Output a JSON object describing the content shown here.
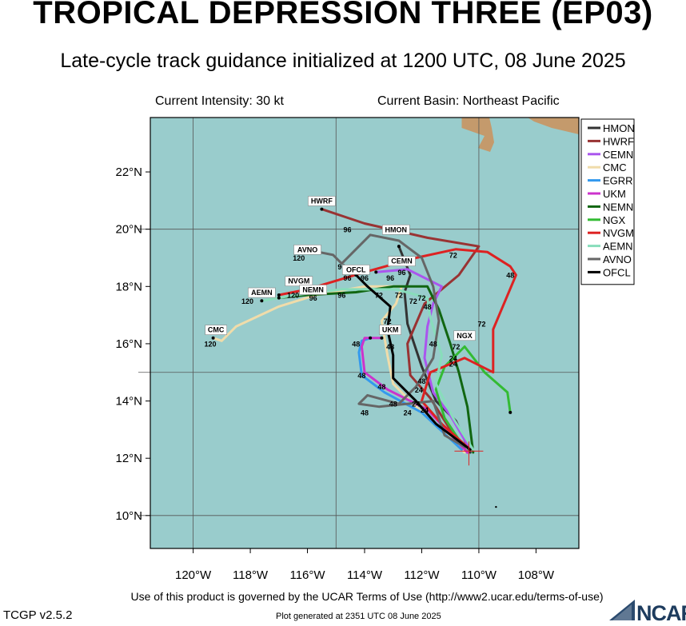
{
  "header": {
    "title": "TROPICAL DEPRESSION THREE (EP03)",
    "subtitle": "Late-cycle track guidance initialized at 1200 UTC, 08 June 2025",
    "intensity": "Current Intensity: 30 kt",
    "basin": "Current Basin: Northeast Pacific"
  },
  "map": {
    "ocean_color": "#99cccc",
    "land_color": "#c49a6c",
    "lon_labels": [
      "120°W",
      "118°W",
      "116°W",
      "114°W",
      "112°W",
      "110°W",
      "108°W"
    ],
    "lat_labels": [
      "22°N",
      "20°N",
      "18°N",
      "16°N",
      "14°N",
      "12°N",
      "10°N"
    ]
  },
  "legend": [
    {
      "name": "HMON",
      "color": "#333333"
    },
    {
      "name": "HWRF",
      "color": "#993333"
    },
    {
      "name": "CEMN",
      "color": "#aa55ee"
    },
    {
      "name": "CMC",
      "color": "#f0dcaa"
    },
    {
      "name": "EGRR",
      "color": "#3399ee"
    },
    {
      "name": "UKM",
      "color": "#cc33cc"
    },
    {
      "name": "NEMN",
      "color": "#116611"
    },
    {
      "name": "NGX",
      "color": "#33bb33"
    },
    {
      "name": "NVGM",
      "color": "#dd2222"
    },
    {
      "name": "AEMN",
      "color": "#88ddbb"
    },
    {
      "name": "AVNO",
      "color": "#666666"
    },
    {
      "name": "OFCL",
      "color": "#000000"
    }
  ],
  "track_labels": [
    {
      "text": "HWRF",
      "lon": -115.5,
      "lat": 20.9
    },
    {
      "text": "AVNO",
      "lon": -116,
      "lat": 19.2
    },
    {
      "text": "HMON",
      "lon": -112.9,
      "lat": 19.9
    },
    {
      "text": "CEMN",
      "lon": -112.7,
      "lat": 18.8
    },
    {
      "text": "OFCL",
      "lon": -114.3,
      "lat": 18.5
    },
    {
      "text": "NVGM",
      "lon": -116.3,
      "lat": 18.1
    },
    {
      "text": "NEMN",
      "lon": -115.8,
      "lat": 17.8
    },
    {
      "text": "AEMN",
      "lon": -117.6,
      "lat": 17.7
    },
    {
      "text": "CMC",
      "lon": -119.2,
      "lat": 16.4
    },
    {
      "text": "UKM",
      "lon": -113.1,
      "lat": 16.4
    },
    {
      "text": "NGX",
      "lon": -110.5,
      "lat": 16.2
    }
  ],
  "hour_labels": [
    {
      "text": "96",
      "lon": -114.6,
      "lat": 19.9
    },
    {
      "text": "120",
      "lon": -116.3,
      "lat": 18.9
    },
    {
      "text": "96",
      "lon": -114.8,
      "lat": 18.6
    },
    {
      "text": "96",
      "lon": -114.6,
      "lat": 18.2
    },
    {
      "text": "96",
      "lon": -114,
      "lat": 18.2
    },
    {
      "text": "96",
      "lon": -113.1,
      "lat": 18.2
    },
    {
      "text": "96",
      "lon": -112.7,
      "lat": 18.4
    },
    {
      "text": "72",
      "lon": -110.9,
      "lat": 19.0
    },
    {
      "text": "48",
      "lon": -108.9,
      "lat": 18.3
    },
    {
      "text": "120",
      "lon": -116.5,
      "lat": 17.6
    },
    {
      "text": "96",
      "lon": -115.8,
      "lat": 17.5
    },
    {
      "text": "96",
      "lon": -114.8,
      "lat": 17.6
    },
    {
      "text": "120",
      "lon": -118.1,
      "lat": 17.4
    },
    {
      "text": "72",
      "lon": -113.5,
      "lat": 17.6
    },
    {
      "text": "72",
      "lon": -112.8,
      "lat": 17.6
    },
    {
      "text": "72",
      "lon": -112.3,
      "lat": 17.4
    },
    {
      "text": "72",
      "lon": -112,
      "lat": 17.5
    },
    {
      "text": "48",
      "lon": -111.8,
      "lat": 17.2
    },
    {
      "text": "72",
      "lon": -113.2,
      "lat": 16.7
    },
    {
      "text": "72",
      "lon": -109.9,
      "lat": 16.6
    },
    {
      "text": "120",
      "lon": -119.4,
      "lat": 15.9
    },
    {
      "text": "48",
      "lon": -114.3,
      "lat": 15.9
    },
    {
      "text": "48",
      "lon": -113.1,
      "lat": 15.8
    },
    {
      "text": "48",
      "lon": -111.6,
      "lat": 15.9
    },
    {
      "text": "72",
      "lon": -110.8,
      "lat": 15.8
    },
    {
      "text": "24",
      "lon": -110.9,
      "lat": 15.4
    },
    {
      "text": "24",
      "lon": -110.9,
      "lat": 15.2
    },
    {
      "text": "48",
      "lon": -114.1,
      "lat": 14.8
    },
    {
      "text": "48",
      "lon": -112,
      "lat": 14.6
    },
    {
      "text": "48",
      "lon": -113.4,
      "lat": 14.4
    },
    {
      "text": "24",
      "lon": -112.1,
      "lat": 14.3
    },
    {
      "text": "48",
      "lon": -113,
      "lat": 13.8
    },
    {
      "text": "24",
      "lon": -112.2,
      "lat": 13.8
    },
    {
      "text": "24",
      "lon": -111.9,
      "lat": 13.6
    },
    {
      "text": "48",
      "lon": -114,
      "lat": 13.5
    },
    {
      "text": "24",
      "lon": -112.5,
      "lat": 13.5
    }
  ],
  "tracks": [
    {
      "name": "HMON",
      "color": "#333333",
      "points": [
        [
          -110.3,
          12.2
        ],
        [
          -110.8,
          13.3
        ],
        [
          -111.5,
          14.0
        ],
        [
          -112.0,
          15.2
        ],
        [
          -112.5,
          16.7
        ],
        [
          -112.6,
          17.8
        ],
        [
          -112.4,
          18.4
        ],
        [
          -112.8,
          19.4
        ]
      ]
    },
    {
      "name": "HWRF",
      "color": "#993333",
      "points": [
        [
          -110.4,
          12.2
        ],
        [
          -111.0,
          13.0
        ],
        [
          -111.7,
          14.1
        ],
        [
          -112.4,
          14.9
        ],
        [
          -112.5,
          16.0
        ],
        [
          -111.9,
          17.4
        ],
        [
          -110.7,
          18.4
        ],
        [
          -110.0,
          19.4
        ],
        [
          -111.8,
          19.7
        ],
        [
          -114.0,
          20.2
        ],
        [
          -115.5,
          20.7
        ]
      ]
    },
    {
      "name": "CEMN",
      "color": "#aa55ee",
      "points": [
        [
          -110.3,
          12.3
        ],
        [
          -111.0,
          13.5
        ],
        [
          -111.6,
          14.3
        ],
        [
          -111.9,
          15.5
        ],
        [
          -111.8,
          16.6
        ],
        [
          -111.6,
          17.4
        ],
        [
          -111.3,
          18.0
        ],
        [
          -112.5,
          18.6
        ],
        [
          -113.6,
          18.5
        ]
      ]
    },
    {
      "name": "CMC",
      "color": "#f0dcaa",
      "points": [
        [
          -110.5,
          12.2
        ],
        [
          -111.3,
          13.0
        ],
        [
          -112.2,
          13.8
        ],
        [
          -113.0,
          14.6
        ],
        [
          -113.2,
          15.6
        ],
        [
          -113.4,
          16.8
        ],
        [
          -112.9,
          17.4
        ],
        [
          -112.7,
          18.0
        ],
        [
          -114.0,
          18.0
        ],
        [
          -115.7,
          17.7
        ],
        [
          -117.0,
          17.3
        ],
        [
          -118.5,
          16.6
        ],
        [
          -119.0,
          16.1
        ],
        [
          -119.3,
          16.2
        ]
      ]
    },
    {
      "name": "EGRR",
      "color": "#3399ee",
      "points": [
        [
          -110.6,
          12.3
        ],
        [
          -112.0,
          13.6
        ],
        [
          -113.3,
          14.3
        ],
        [
          -114.1,
          14.9
        ],
        [
          -114.2,
          15.7
        ],
        [
          -114.1,
          16.1
        ],
        [
          -113.8,
          16.2
        ]
      ]
    },
    {
      "name": "UKM",
      "color": "#cc33cc",
      "points": [
        [
          -110.4,
          12.2
        ],
        [
          -111.8,
          13.7
        ],
        [
          -113.2,
          14.4
        ],
        [
          -114.0,
          15.0
        ],
        [
          -114.1,
          15.9
        ],
        [
          -114.0,
          16.2
        ],
        [
          -113.4,
          16.2
        ]
      ]
    },
    {
      "name": "NEMN",
      "color": "#116611",
      "points": [
        [
          -110.2,
          12.2
        ],
        [
          -110.4,
          13.8
        ],
        [
          -110.7,
          15.0
        ],
        [
          -111.0,
          16.0
        ],
        [
          -111.4,
          17.2
        ],
        [
          -111.8,
          18.0
        ],
        [
          -113.0,
          18.0
        ],
        [
          -114.3,
          17.8
        ],
        [
          -116.0,
          17.7
        ],
        [
          -117.0,
          17.6
        ]
      ]
    },
    {
      "name": "NGX",
      "color": "#33bb33",
      "points": [
        [
          -110.6,
          12.5
        ],
        [
          -111.2,
          13.4
        ],
        [
          -111.5,
          14.4
        ],
        [
          -111.2,
          15.2
        ],
        [
          -110.5,
          15.9
        ],
        [
          -109.8,
          15.0
        ],
        [
          -109.0,
          14.3
        ],
        [
          -108.9,
          13.6
        ]
      ]
    },
    {
      "name": "NVGM",
      "color": "#dd2222",
      "points": [
        [
          -110.3,
          12.3
        ],
        [
          -111.3,
          13.2
        ],
        [
          -112.0,
          14.0
        ],
        [
          -111.7,
          15.0
        ],
        [
          -110.5,
          15.5
        ],
        [
          -109.5,
          15.0
        ],
        [
          -109.5,
          16.5
        ],
        [
          -108.7,
          18.4
        ],
        [
          -108.9,
          18.7
        ],
        [
          -109.7,
          19.2
        ],
        [
          -110.8,
          19.3
        ],
        [
          -112.2,
          19.0
        ],
        [
          -114.0,
          18.5
        ],
        [
          -116.0,
          17.9
        ],
        [
          -117.0,
          17.7
        ]
      ]
    },
    {
      "name": "AEMN",
      "color": "#88ddbb",
      "points": [
        [
          -110.2,
          12.3
        ],
        [
          -110.9,
          13.4
        ],
        [
          -111.5,
          14.6
        ],
        [
          -111.3,
          15.6
        ],
        [
          -111.7,
          16.9
        ],
        [
          -111.8,
          17.6
        ],
        [
          -112.9,
          17.9
        ],
        [
          -114.8,
          17.9
        ],
        [
          -116.4,
          17.7
        ],
        [
          -117.6,
          17.5
        ]
      ]
    },
    {
      "name": "AVNO",
      "color": "#666666",
      "points": [
        [
          -110.5,
          12.4
        ],
        [
          -111.2,
          12.8
        ],
        [
          -111.6,
          14.0
        ],
        [
          -112.5,
          13.9
        ],
        [
          -113.5,
          13.8
        ],
        [
          -114.2,
          13.9
        ],
        [
          -113.9,
          14.2
        ],
        [
          -112.8,
          13.9
        ],
        [
          -112.2,
          14.5
        ],
        [
          -111.6,
          15.5
        ],
        [
          -111.4,
          16.8
        ],
        [
          -111.6,
          18.0
        ],
        [
          -112.0,
          19.0
        ],
        [
          -112.8,
          19.6
        ],
        [
          -113.8,
          19.8
        ],
        [
          -114.8,
          18.8
        ],
        [
          -115.1,
          19.1
        ],
        [
          -115.6,
          19.2
        ],
        [
          -116.3,
          19.2
        ]
      ]
    },
    {
      "name": "OFCL",
      "color": "#000000",
      "points": [
        [
          -110.3,
          12.3
        ],
        [
          -111.5,
          13.2
        ],
        [
          -112.2,
          14.0
        ],
        [
          -113.0,
          14.8
        ],
        [
          -113.0,
          15.6
        ],
        [
          -113.2,
          16.5
        ],
        [
          -113.1,
          17.3
        ],
        [
          -113.9,
          18.0
        ],
        [
          -114.3,
          18.4
        ]
      ]
    }
  ],
  "footer": {
    "terms": "Use of this product is governed by the UCAR Terms of Use (http://www2.ucar.edu/terms-of-use)",
    "version": "TCGP v2.5.2",
    "generated": "Plot generated at 2351 UTC   08 June 2025",
    "logo_text": "NCAR"
  }
}
